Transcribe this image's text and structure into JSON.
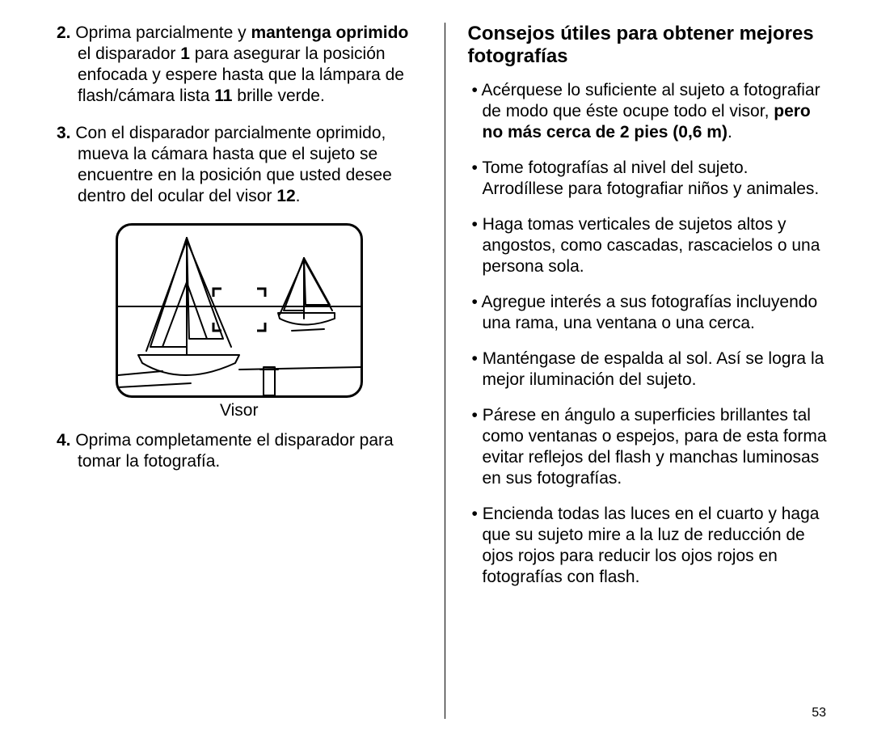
{
  "page_number": "53",
  "left": {
    "steps": [
      {
        "num": "2.",
        "segments": [
          {
            "t": " Oprima parcialmente y ",
            "b": false
          },
          {
            "t": "mantenga oprimido",
            "b": true
          },
          {
            "t": " el disparador ",
            "b": false
          },
          {
            "t": "1",
            "b": true
          },
          {
            "t": " para asegurar la posición enfocada y espere hasta que la lámpara de flash/cámara lista ",
            "b": false
          },
          {
            "t": "11",
            "b": true
          },
          {
            "t": " brille verde.",
            "b": false
          }
        ]
      },
      {
        "num": "3.",
        "segments": [
          {
            "t": " Con el disparador parcialmente oprimido, mueva la cámara hasta que el sujeto se encuentre en la posición que usted desee dentro del ocular del visor ",
            "b": false
          },
          {
            "t": "12",
            "b": true
          },
          {
            "t": ".",
            "b": false
          }
        ]
      }
    ],
    "figure_caption": "Visor",
    "step4": {
      "num": "4.",
      "segments": [
        {
          "t": " Oprima completamente el disparador para tomar la fotografía.",
          "b": false
        }
      ]
    }
  },
  "right": {
    "heading": "Consejos útiles para obtener mejores fotografías",
    "bullets": [
      {
        "segments": [
          {
            "t": "Acérquese lo suficiente al sujeto a fotografiar de modo que éste ocupe todo el visor, ",
            "b": false
          },
          {
            "t": "pero no más cerca de 2 pies (0,6 m)",
            "b": true
          },
          {
            "t": ".",
            "b": false
          }
        ]
      },
      {
        "segments": [
          {
            "t": "Tome fotografías al nivel del sujeto. Arrodíllese para fotografiar niños y animales.",
            "b": false
          }
        ]
      },
      {
        "segments": [
          {
            "t": "Haga tomas verticales de sujetos altos y angostos, como cascadas, rascacielos o una persona sola.",
            "b": false
          }
        ]
      },
      {
        "segments": [
          {
            "t": "Agregue interés a sus fotografías incluyendo una rama, una ventana o una cerca.",
            "b": false
          }
        ]
      },
      {
        "segments": [
          {
            "t": "Manténgase de espalda al sol.  Así se logra la mejor iluminación del sujeto.",
            "b": false
          }
        ]
      },
      {
        "segments": [
          {
            "t": "Párese en ángulo a superficies brillantes tal como ventanas o espejos, para de esta forma evitar reflejos del flash y manchas luminosas en sus fotografías.",
            "b": false
          }
        ]
      },
      {
        "segments": [
          {
            "t": "Encienda todas las luces en el cuarto y haga que su sujeto mire a la luz de reducción de ojos rojos para reducir los ojos rojos en fotografías con flash.",
            "b": false
          }
        ]
      }
    ]
  },
  "figure": {
    "stroke": "#000000",
    "stroke_width": 2
  }
}
